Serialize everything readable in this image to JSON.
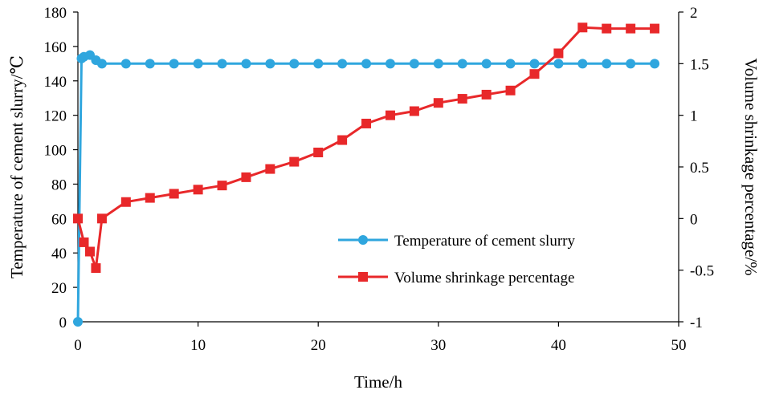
{
  "chart_data": {
    "type": "line",
    "title": "",
    "xlabel": "Time/h",
    "ylabel_left": "Temperature of cement slurry/℃",
    "ylabel_right": "Volume shrinkage percentage/%",
    "xlim": [
      0,
      50
    ],
    "ylim_left": [
      0,
      180
    ],
    "ylim_right": [
      -1,
      2
    ],
    "x_ticks": [
      "0",
      "10",
      "20",
      "30",
      "40",
      "50"
    ],
    "y_left_ticks": [
      "0",
      "20",
      "40",
      "60",
      "80",
      "100",
      "120",
      "140",
      "160",
      "180"
    ],
    "y_right_ticks": [
      "-1",
      "-0.5",
      "0",
      "0.5",
      "1",
      "1.5",
      "2"
    ],
    "grid": false,
    "legend_position": "bottom-right",
    "series": [
      {
        "name": "Temperature of cement slurry",
        "axis": "left",
        "color": "#2fa6de",
        "marker": "circle",
        "x": [
          0,
          0.3,
          0.5,
          1,
          1.5,
          2,
          4,
          6,
          8,
          10,
          12,
          14,
          16,
          18,
          20,
          22,
          24,
          26,
          28,
          30,
          32,
          34,
          36,
          38,
          40,
          42,
          44,
          46,
          48
        ],
        "y": [
          0,
          153,
          154,
          155,
          152,
          150,
          150,
          150,
          150,
          150,
          150,
          150,
          150,
          150,
          150,
          150,
          150,
          150,
          150,
          150,
          150,
          150,
          150,
          150,
          150,
          150,
          150,
          150,
          150
        ]
      },
      {
        "name": "Volume shrinkage percentage",
        "axis": "right",
        "color": "#e8282a",
        "marker": "square",
        "x": [
          0,
          0.5,
          1,
          1.5,
          2,
          4,
          6,
          8,
          10,
          12,
          14,
          16,
          18,
          20,
          22,
          24,
          26,
          28,
          30,
          32,
          34,
          36,
          38,
          40,
          42,
          44,
          46,
          48
        ],
        "y": [
          0,
          -0.23,
          -0.32,
          -0.48,
          0,
          0.16,
          0.2,
          0.24,
          0.28,
          0.32,
          0.4,
          0.48,
          0.55,
          0.64,
          0.76,
          0.92,
          1.0,
          1.04,
          1.12,
          1.16,
          1.2,
          1.24,
          1.4,
          1.6,
          1.85,
          1.84,
          1.84,
          1.84
        ]
      }
    ]
  }
}
